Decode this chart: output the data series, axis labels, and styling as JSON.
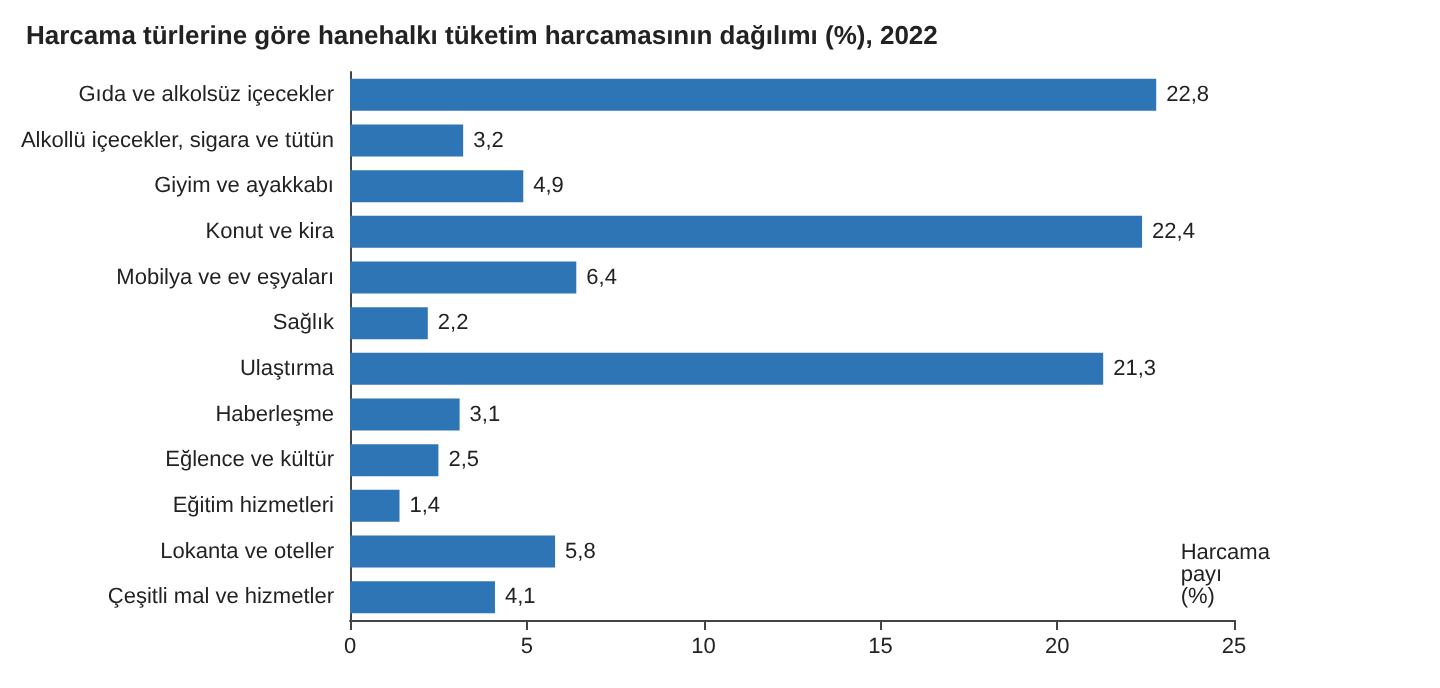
{
  "chart_data": {
    "type": "bar",
    "orientation": "horizontal",
    "title": "Harcama türlerine göre hanehalkı tüketim harcamasının dağılımı (%), 2022",
    "xlabel": "Harcama payı (%)",
    "categories": [
      "Gıda ve alkolsüz içecekler",
      "Alkollü içecekler, sigara ve tütün",
      "Giyim ve ayakkabı",
      "Konut ve kira",
      "Mobilya ve ev eşyaları",
      "Sağlık",
      "Ulaştırma",
      "Haberleşme",
      "Eğlence ve kültür",
      "Eğitim hizmetleri",
      "Lokanta ve oteller",
      "Çeşitli mal ve hizmetler"
    ],
    "values": [
      22.8,
      3.2,
      4.9,
      22.4,
      6.4,
      2.2,
      21.3,
      3.1,
      2.5,
      1.4,
      5.8,
      4.1
    ],
    "value_labels": [
      "22,8",
      "3,2",
      "4,9",
      "22,4",
      "6,4",
      "2,2",
      "21,3",
      "3,1",
      "2,5",
      "1,4",
      "5,8",
      "4,1"
    ],
    "color": "#2e75b6",
    "xlim": [
      0,
      25
    ],
    "xticks": [
      0,
      5,
      10,
      15,
      20,
      25
    ],
    "grid": false
  }
}
